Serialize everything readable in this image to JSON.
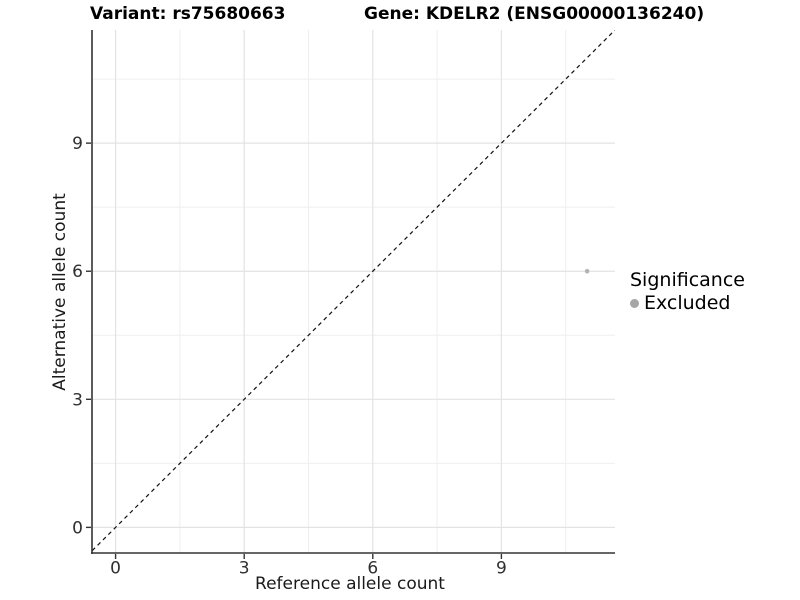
{
  "chart_data": {
    "type": "scatter",
    "title_left": "Variant: rs75680663",
    "title_right": "Gene: KDELR2 (ENSG00000136240)",
    "xlabel": "Reference allele count",
    "ylabel": "Alternative allele count",
    "x_ticks": [
      0,
      3,
      6,
      9
    ],
    "y_ticks": [
      0,
      3,
      6,
      9
    ],
    "x_minor_ticks": [
      1.5,
      4.5,
      7.5,
      10.5
    ],
    "y_minor_ticks": [
      1.5,
      4.5,
      7.5,
      10.5
    ],
    "xlim": [
      -0.55,
      11.65
    ],
    "ylim": [
      -0.6,
      11.65
    ],
    "grid": true,
    "series": [
      {
        "name": "Excluded",
        "color": "#b4b4b4",
        "points": [
          {
            "x": 11,
            "y": 6
          }
        ]
      }
    ],
    "reference_line": {
      "kind": "identity",
      "slope": 1,
      "intercept": 0,
      "linetype": "dashed",
      "color": "#111111"
    },
    "legend": {
      "title": "Significance",
      "position": "right",
      "items": [
        {
          "label": "Excluded",
          "color": "#a6a6a6"
        }
      ]
    }
  },
  "colors": {
    "background": "#ffffff",
    "grid_major": "#e3e3e3",
    "grid_minor": "#efefef",
    "axis": "#333333",
    "tick_label": "#303030"
  }
}
